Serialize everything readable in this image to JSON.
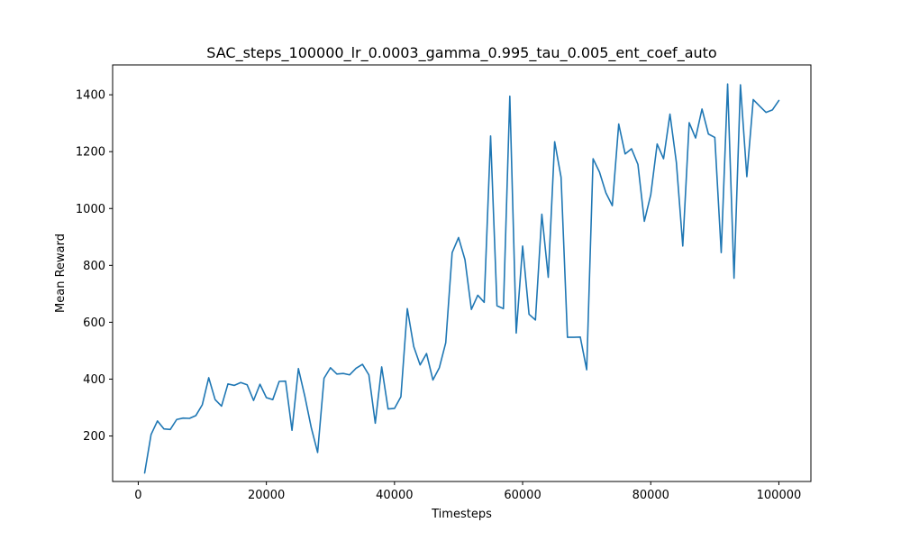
{
  "chart_data": {
    "type": "line",
    "title": "SAC_steps_100000_lr_0.0003_gamma_0.995_tau_0.005_ent_coef_auto",
    "xlabel": "Timesteps",
    "ylabel": "Mean Reward",
    "xlim": [
      -4000,
      105000
    ],
    "ylim": [
      40,
      1505
    ],
    "xticks": [
      0,
      20000,
      40000,
      60000,
      80000,
      100000
    ],
    "yticks": [
      200,
      400,
      600,
      800,
      1000,
      1200,
      1400
    ],
    "grid": false,
    "line_color": "#1f77b4",
    "series": [
      {
        "x": [
          1000,
          2000,
          3000,
          4000,
          5000,
          6000,
          7000,
          8000,
          9000,
          10000,
          11000,
          12000,
          13000,
          14000,
          15000,
          16000,
          17000,
          18000,
          19000,
          20000,
          21000,
          22000,
          23000,
          24000,
          25000,
          26000,
          27000,
          28000,
          29000,
          30000,
          31000,
          32000,
          33000,
          34000,
          35000,
          36000,
          37000,
          38000,
          39000,
          40000,
          41000,
          42000,
          43000,
          44000,
          45000,
          46000,
          47000,
          48000,
          49000,
          50000,
          51000,
          52000,
          53000,
          54000,
          55000,
          56000,
          57000,
          58000,
          59000,
          60000,
          61000,
          62000,
          63000,
          64000,
          65000,
          66000,
          67000,
          68000,
          69000,
          70000,
          71000,
          72000,
          73000,
          74000,
          75000,
          76000,
          77000,
          78000,
          79000,
          80000,
          81000,
          82000,
          83000,
          84000,
          85000,
          86000,
          87000,
          88000,
          89000,
          90000,
          91000,
          92000,
          93000,
          94000,
          95000,
          96000,
          97000,
          98000,
          99000,
          100000
        ],
        "y": [
          70,
          205,
          253,
          225,
          223,
          258,
          263,
          262,
          272,
          310,
          405,
          328,
          305,
          383,
          378,
          388,
          380,
          325,
          382,
          335,
          328,
          392,
          393,
          220,
          437,
          340,
          230,
          142,
          403,
          440,
          418,
          420,
          415,
          438,
          452,
          415,
          245,
          443,
          295,
          297,
          338,
          648,
          515,
          450,
          490,
          397,
          440,
          528,
          845,
          898,
          820,
          645,
          695,
          670,
          1255,
          658,
          648,
          1395,
          562,
          868,
          628,
          608,
          980,
          758,
          1235,
          1110,
          547,
          547,
          548,
          433,
          1175,
          1128,
          1055,
          1010,
          1297,
          1192,
          1210,
          1155,
          955,
          1048,
          1227,
          1175,
          1332,
          1162,
          868,
          1302,
          1248,
          1350,
          1262,
          1250,
          845,
          1438,
          755,
          1435,
          1112,
          1383,
          1360,
          1338,
          1347,
          1380
        ]
      }
    ]
  }
}
